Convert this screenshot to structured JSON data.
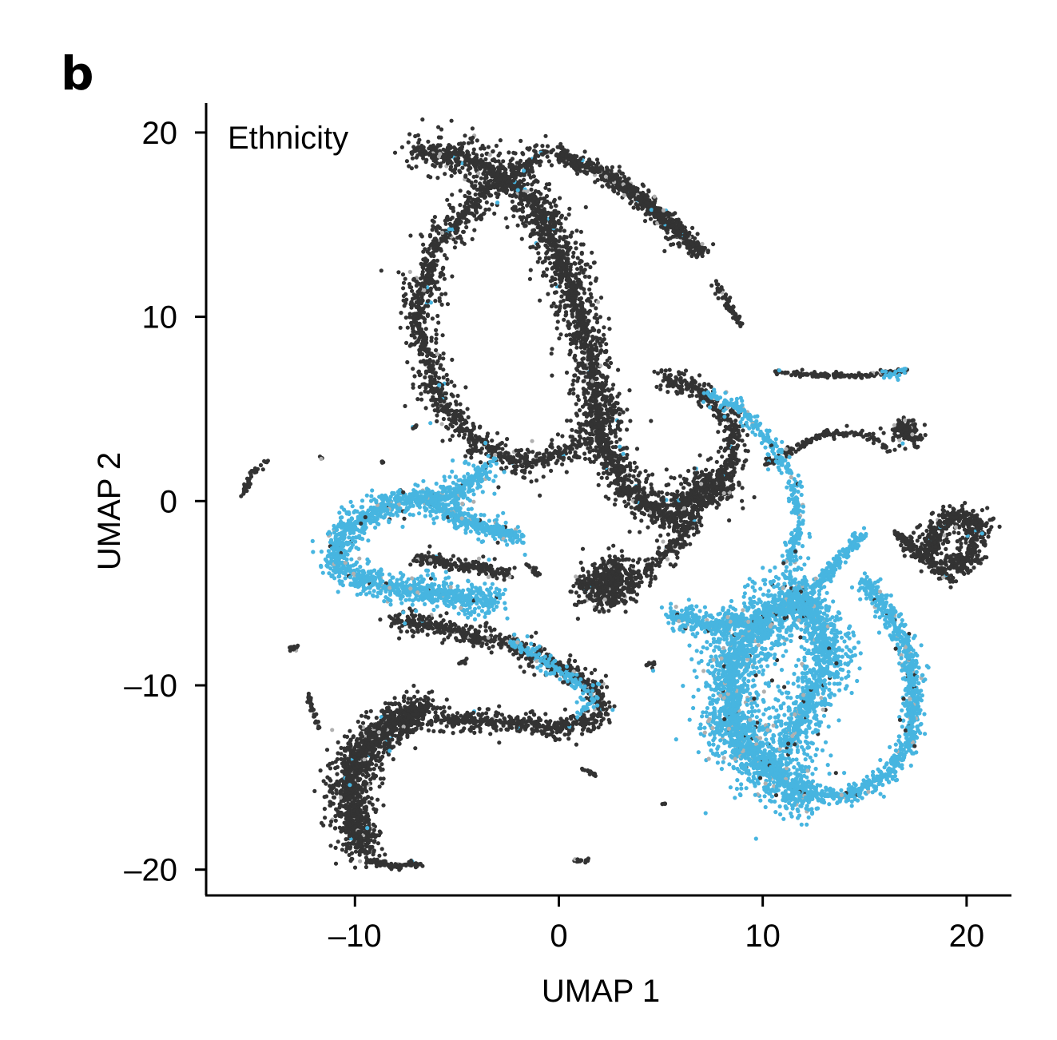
{
  "panel_label": "b",
  "chart_data": {
    "type": "scatter",
    "title": "",
    "annotation": "Ethnicity",
    "xlabel": "UMAP 1",
    "ylabel": "UMAP 2",
    "xlim": [
      -17.3,
      22.2
    ],
    "ylim": [
      -21.4,
      21.6
    ],
    "xticks": [
      -10,
      0,
      10,
      20
    ],
    "yticks": [
      20,
      10,
      0,
      -10,
      -20
    ],
    "xtick_labels": [
      "–10",
      "0",
      "10",
      "20"
    ],
    "ytick_labels": [
      "20",
      "10",
      "0",
      "–10",
      "–20"
    ],
    "grid": false,
    "legend": "none",
    "colors": {
      "dark": "#333333",
      "blue": "#47b5e0",
      "grey": "#b0b0b0"
    },
    "regions": [
      {
        "group": "dark",
        "n": 2600,
        "spread": 0.9,
        "path": [
          [
            -7,
            19
          ],
          [
            -4,
            18.5
          ],
          [
            -1,
            16
          ],
          [
            0.5,
            12
          ],
          [
            1.5,
            8
          ],
          [
            2,
            4
          ],
          [
            3,
            1
          ],
          [
            5.5,
            -1
          ],
          [
            7,
            1
          ],
          [
            8.5,
            0.5
          ]
        ]
      },
      {
        "group": "dark",
        "n": 1400,
        "spread": 0.75,
        "path": [
          [
            -0.5,
            19
          ],
          [
            -3.5,
            17
          ],
          [
            -6,
            14
          ],
          [
            -7,
            10
          ],
          [
            -6,
            6
          ],
          [
            -4,
            3
          ],
          [
            -1.5,
            2
          ],
          [
            1,
            3
          ],
          [
            3,
            5
          ]
        ]
      },
      {
        "group": "dark",
        "n": 900,
        "spread": 0.4,
        "path": [
          [
            0,
            18.8
          ],
          [
            2.5,
            17.6
          ],
          [
            4.5,
            16
          ],
          [
            6.1,
            14.3
          ],
          [
            7.1,
            13.5
          ]
        ]
      },
      {
        "group": "dark",
        "n": 60,
        "spread": 0.2,
        "path": [
          [
            7.7,
            11.8
          ],
          [
            8.4,
            10.4
          ],
          [
            8.9,
            9.6
          ]
        ]
      },
      {
        "group": "dark",
        "n": 700,
        "spread": 0.55,
        "path": [
          [
            5,
            6.8
          ],
          [
            7,
            6
          ],
          [
            8.6,
            4
          ],
          [
            8.5,
            2
          ],
          [
            7,
            0
          ],
          [
            6,
            -2
          ],
          [
            4,
            -4
          ],
          [
            2.3,
            -5.8
          ]
        ]
      },
      {
        "group": "dark",
        "n": 450,
        "spread": 0.9,
        "path": [
          [
            1.3,
            -4.4
          ],
          [
            2.3,
            -4.8
          ],
          [
            3,
            -3.5
          ]
        ]
      },
      {
        "group": "dark",
        "n": 160,
        "spread": 0.12,
        "path": [
          [
            10.6,
            7
          ],
          [
            13,
            6.8
          ],
          [
            15,
            6.8
          ],
          [
            17,
            7.1
          ]
        ]
      },
      {
        "group": "dark",
        "n": 200,
        "spread": 0.55,
        "path": [
          [
            16.8,
            4
          ],
          [
            17.2,
            3.8
          ],
          [
            17.3,
            3.4
          ]
        ]
      },
      {
        "group": "dark",
        "n": 140,
        "spread": 0.2,
        "path": [
          [
            10.2,
            2
          ],
          [
            11.5,
            2.8
          ],
          [
            13,
            3.7
          ],
          [
            15.2,
            3.6
          ],
          [
            16.3,
            2.8
          ]
        ]
      },
      {
        "group": "dark",
        "n": 600,
        "spread": 0.65,
        "path": [
          [
            18,
            -3.2
          ],
          [
            18.5,
            -1.5
          ],
          [
            19.5,
            -0.8
          ],
          [
            20.6,
            -1.2
          ],
          [
            20.3,
            -2.8
          ],
          [
            18.7,
            -4
          ]
        ]
      },
      {
        "group": "dark",
        "n": 110,
        "spread": 0.25,
        "path": [
          [
            16.6,
            -1.7
          ],
          [
            17.4,
            -2.7
          ],
          [
            18.4,
            -3.5
          ]
        ]
      },
      {
        "group": "dark",
        "n": 1700,
        "spread": 0.85,
        "path": [
          [
            -6.5,
            -11.2
          ],
          [
            -9,
            -12.6
          ],
          [
            -10.3,
            -15
          ],
          [
            -10.1,
            -17.5
          ],
          [
            -9.6,
            -18.8
          ]
        ]
      },
      {
        "group": "dark",
        "n": 1000,
        "spread": 0.55,
        "path": [
          [
            -8.2,
            -6.5
          ],
          [
            -6,
            -6.8
          ],
          [
            -2.5,
            -7.8
          ],
          [
            0.5,
            -9.2
          ],
          [
            2,
            -10.4
          ],
          [
            2,
            -11.7
          ],
          [
            0,
            -12.3
          ],
          [
            -3,
            -12
          ],
          [
            -6,
            -11.8
          ]
        ]
      },
      {
        "group": "dark",
        "n": 220,
        "spread": 0.35,
        "path": [
          [
            -7,
            -3.1
          ],
          [
            -5.5,
            -3.4
          ],
          [
            -4,
            -3.6
          ],
          [
            -2.5,
            -4
          ]
        ]
      },
      {
        "group": "dark",
        "n": 90,
        "spread": 0.15,
        "path": [
          [
            -9.4,
            -19.5
          ],
          [
            -8.2,
            -19.8
          ],
          [
            -6.8,
            -19.7
          ]
        ]
      },
      {
        "group": "dark",
        "n": 40,
        "spread": 0.15,
        "path": [
          [
            -15.6,
            0.2
          ],
          [
            -15,
            1.5
          ],
          [
            -14.3,
            2.2
          ]
        ]
      },
      {
        "group": "dark",
        "n": 20,
        "spread": 0.1,
        "path": [
          [
            -13.2,
            -7.9
          ],
          [
            -12.8,
            -8.1
          ]
        ]
      },
      {
        "group": "dark",
        "n": 30,
        "spread": 0.12,
        "path": [
          [
            -12.3,
            -10.6
          ],
          [
            -12,
            -11.6
          ],
          [
            -11.8,
            -12.3
          ]
        ]
      },
      {
        "group": "dark",
        "n": 20,
        "spread": 0.15,
        "path": [
          [
            -1.6,
            -3.4
          ],
          [
            -1,
            -4
          ]
        ]
      },
      {
        "group": "dark",
        "n": 20,
        "spread": 0.1,
        "path": [
          [
            0.8,
            -19.5
          ],
          [
            1.4,
            -19.5
          ]
        ]
      },
      {
        "group": "dark",
        "n": 14,
        "spread": 0.1,
        "path": [
          [
            1.1,
            -14.5
          ],
          [
            1.8,
            -14.9
          ]
        ]
      },
      {
        "group": "dark",
        "n": 12,
        "spread": 0.12,
        "path": [
          [
            4.2,
            -8.9
          ],
          [
            4.7,
            -8.8
          ]
        ]
      },
      {
        "group": "dark",
        "n": 10,
        "spread": 0.12,
        "path": [
          [
            -4.9,
            -8.8
          ],
          [
            -4.5,
            -8.7
          ]
        ]
      },
      {
        "group": "dark",
        "n": 8,
        "spread": 0.1,
        "path": [
          [
            -7.2,
            4
          ],
          [
            -6.9,
            4.1
          ]
        ]
      },
      {
        "group": "dark",
        "n": 4,
        "spread": 0.1,
        "path": [
          [
            -11.7,
            2.3
          ],
          [
            -11.6,
            2.3
          ]
        ]
      },
      {
        "group": "dark",
        "n": 4,
        "spread": 0.1,
        "path": [
          [
            -8.7,
            2.1
          ],
          [
            -8.6,
            2.1
          ]
        ]
      },
      {
        "group": "dark",
        "n": 4,
        "spread": 0.1,
        "path": [
          [
            5.1,
            -16.4
          ],
          [
            5.2,
            -16.4
          ]
        ]
      },
      {
        "group": "blue",
        "n": 1500,
        "spread": 0.7,
        "path": [
          [
            -3.6,
            1.9
          ],
          [
            -5,
            0.3
          ],
          [
            -8,
            0
          ],
          [
            -10.5,
            -1.5
          ],
          [
            -11,
            -3.4
          ],
          [
            -9,
            -4.5
          ],
          [
            -6,
            -5
          ],
          [
            -3,
            -5.5
          ]
        ]
      },
      {
        "group": "blue",
        "n": 420,
        "spread": 0.45,
        "path": [
          [
            -6.4,
            -0.1
          ],
          [
            -4.3,
            -1.2
          ],
          [
            -2,
            -2
          ]
        ]
      },
      {
        "group": "blue",
        "n": 180,
        "spread": 0.35,
        "path": [
          [
            -2.3,
            -7.6
          ],
          [
            0.4,
            -9.5
          ],
          [
            1.7,
            -10.6
          ],
          [
            1,
            -11.6
          ]
        ]
      },
      {
        "group": "blue",
        "n": 360,
        "spread": 0.38,
        "path": [
          [
            7.2,
            5.8
          ],
          [
            9,
            5
          ],
          [
            10.3,
            3.2
          ],
          [
            11.5,
            1.2
          ],
          [
            11.8,
            -1.5
          ],
          [
            11.2,
            -3.5
          ]
        ]
      },
      {
        "group": "blue",
        "n": 2400,
        "spread": 1.3,
        "path": [
          [
            12,
            -4.8
          ],
          [
            9.3,
            -7
          ],
          [
            8.4,
            -9.5
          ],
          [
            8.5,
            -12
          ],
          [
            9.5,
            -13.8
          ],
          [
            11,
            -15.2
          ],
          [
            12.3,
            -16
          ]
        ]
      },
      {
        "group": "blue",
        "n": 1000,
        "spread": 1.05,
        "path": [
          [
            11.5,
            -5
          ],
          [
            12.8,
            -6.5
          ],
          [
            13.3,
            -8.5
          ],
          [
            12.4,
            -10.4
          ],
          [
            11.2,
            -13.2
          ]
        ]
      },
      {
        "group": "blue",
        "n": 300,
        "spread": 0.55,
        "path": [
          [
            5.5,
            -6.2
          ],
          [
            7.6,
            -6.8
          ],
          [
            9,
            -6.5
          ]
        ]
      },
      {
        "group": "blue",
        "n": 160,
        "spread": 0.3,
        "path": [
          [
            12.6,
            -4.6
          ],
          [
            13.6,
            -3.4
          ],
          [
            14.5,
            -2.2
          ],
          [
            15,
            -1.8
          ]
        ]
      },
      {
        "group": "blue",
        "n": 950,
        "spread": 0.45,
        "path": [
          [
            15,
            -4.3
          ],
          [
            16.2,
            -6
          ],
          [
            17.1,
            -8.2
          ],
          [
            17.4,
            -10.6
          ],
          [
            17.2,
            -13
          ],
          [
            16.2,
            -14.8
          ],
          [
            14,
            -16
          ],
          [
            11.7,
            -15.8
          ]
        ]
      },
      {
        "group": "blue",
        "n": 25,
        "spread": 0.2,
        "path": [
          [
            16,
            6.8
          ],
          [
            16.8,
            7
          ]
        ]
      }
    ]
  }
}
